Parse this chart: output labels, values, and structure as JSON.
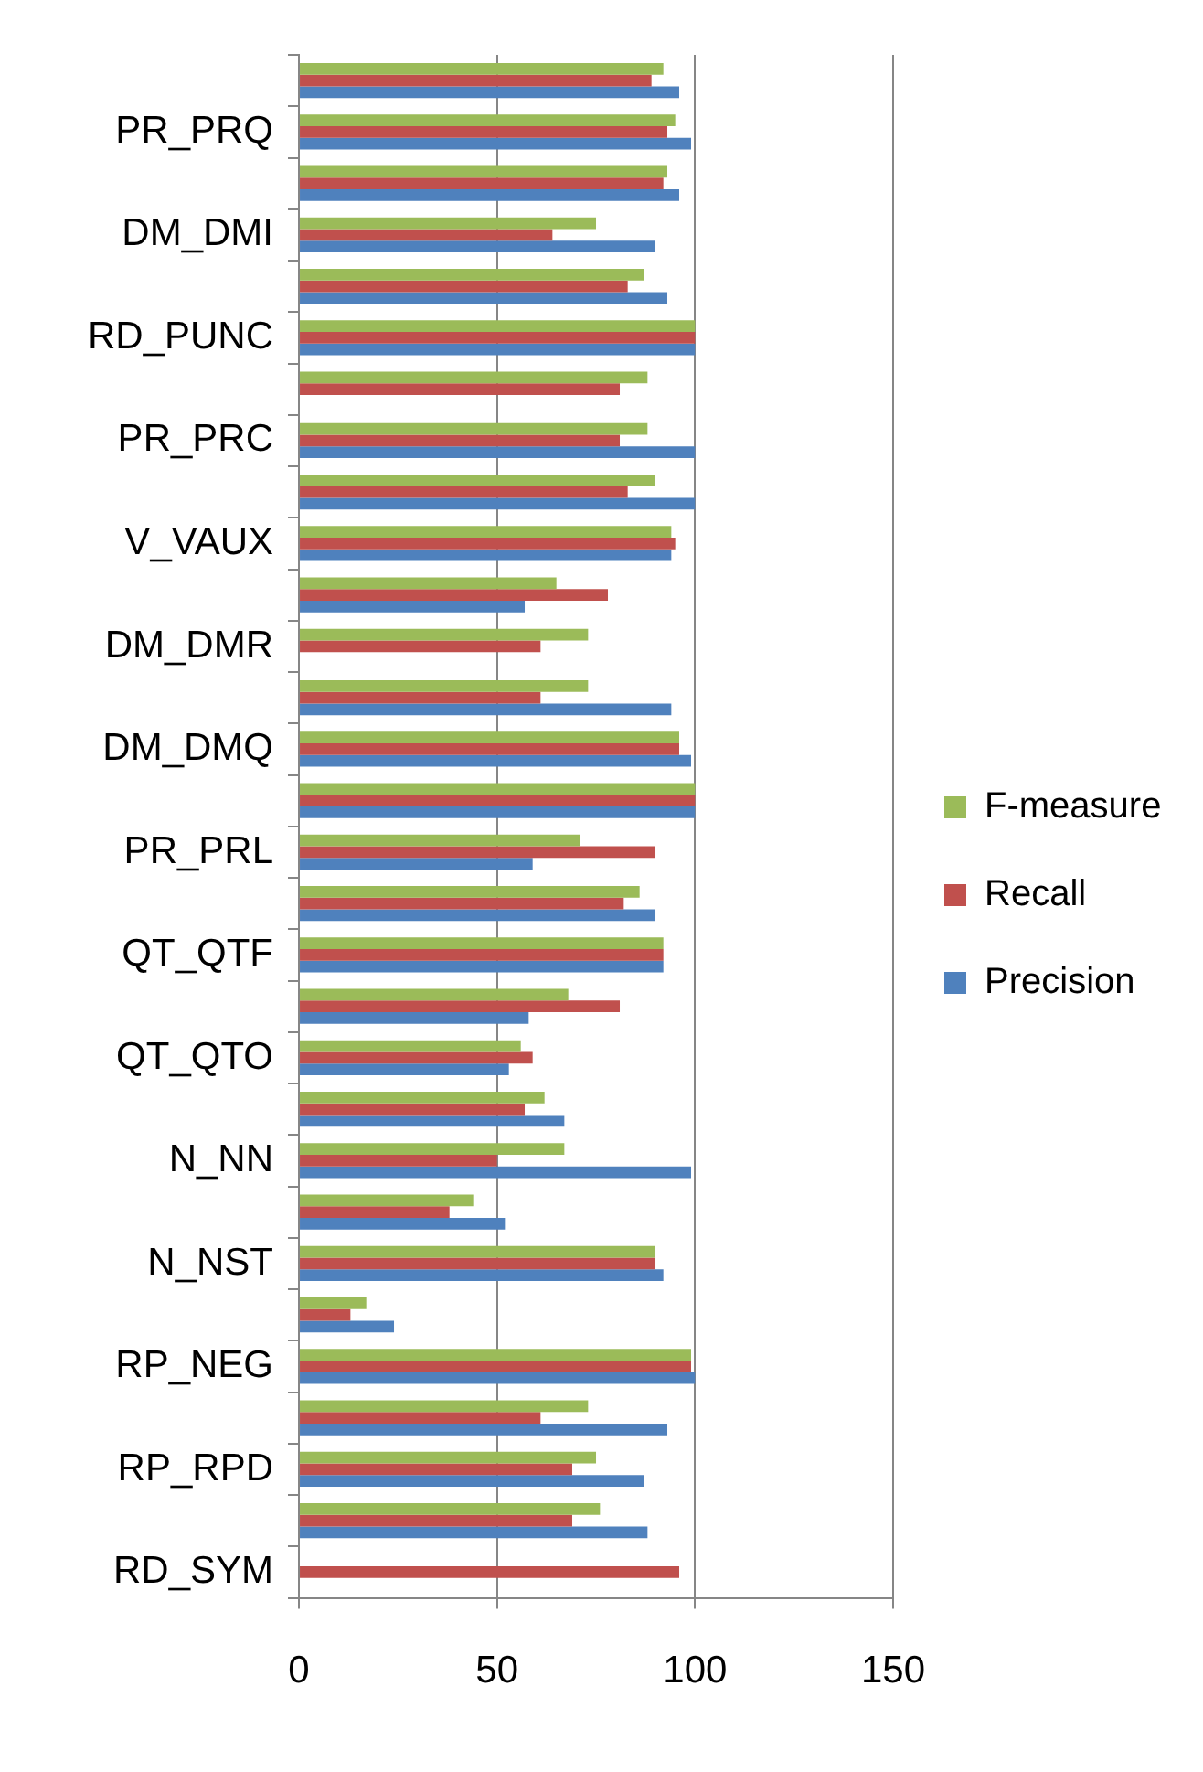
{
  "chart_data": {
    "type": "bar",
    "orientation": "horizontal",
    "categories": [
      null,
      "PR_PRQ",
      null,
      "DM_DMI",
      null,
      "RD_PUNC",
      null,
      "PR_PRC",
      null,
      "V_VAUX",
      null,
      "DM_DMR",
      null,
      "DM_DMQ",
      null,
      "PR_PRL",
      null,
      "QT_QTF",
      null,
      "QT_QTO",
      null,
      "N_NN",
      null,
      "N_NST",
      null,
      "RP_NEG",
      null,
      "RP_RPD",
      null,
      "RD_SYM"
    ],
    "series": [
      {
        "name": "F-measure",
        "color": "#9bbb59",
        "values": [
          92,
          95,
          93,
          75,
          87,
          100,
          88,
          88,
          90,
          94,
          65,
          73,
          73,
          96,
          100,
          71,
          86,
          92,
          68,
          56,
          62,
          67,
          44,
          90,
          17,
          99,
          73,
          75,
          76,
          0
        ]
      },
      {
        "name": "Recall",
        "color": "#c0504d",
        "values": [
          89,
          93,
          92,
          64,
          83,
          100,
          81,
          81,
          83,
          95,
          78,
          61,
          61,
          96,
          100,
          90,
          82,
          92,
          81,
          59,
          57,
          50,
          38,
          90,
          13,
          99,
          61,
          69,
          69,
          96
        ]
      },
      {
        "name": "Precision",
        "color": "#4f81bd",
        "values": [
          96,
          99,
          96,
          90,
          93,
          100,
          0,
          100,
          100,
          94,
          57,
          0,
          94,
          99,
          100,
          59,
          90,
          92,
          58,
          53,
          67,
          99,
          52,
          92,
          24,
          100,
          93,
          87,
          88,
          0
        ]
      }
    ],
    "xlim": [
      0,
      150
    ],
    "xticks": [
      0,
      50,
      100,
      150
    ],
    "grid": "x",
    "legend": "right"
  }
}
